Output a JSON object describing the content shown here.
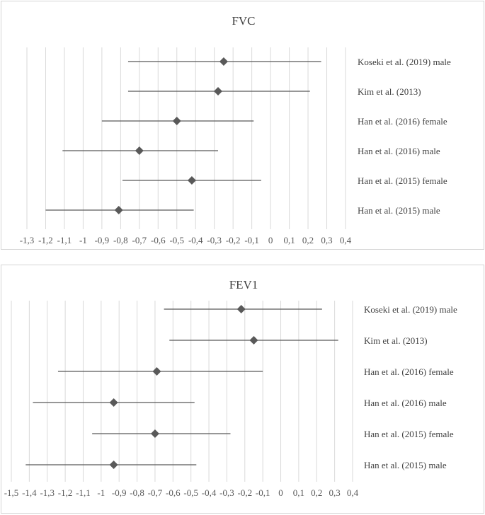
{
  "chart_data": [
    {
      "type": "forest",
      "title": "FVC",
      "xlim": [
        -1.3,
        0.4
      ],
      "xticks": [
        "-1,3",
        "-1,2",
        "-1,1",
        "-1",
        "-0,9",
        "-0,8",
        "-0,7",
        "-0,6",
        "-0,5",
        "-0,4",
        "-0,3",
        "-0,2",
        "-0,1",
        "0",
        "0,1",
        "0,2",
        "0,3",
        "0,4"
      ],
      "xtick_values": [
        -1.3,
        -1.2,
        -1.1,
        -1.0,
        -0.9,
        -0.8,
        -0.7,
        -0.6,
        -0.5,
        -0.4,
        -0.3,
        -0.2,
        -0.1,
        0,
        0.1,
        0.2,
        0.3,
        0.4
      ],
      "studies": [
        {
          "label": "Koseki et al.  (2019) male",
          "estimate": -0.25,
          "lower": -0.76,
          "upper": 0.27
        },
        {
          "label": "Kim et al. (2013)",
          "estimate": -0.28,
          "lower": -0.76,
          "upper": 0.21
        },
        {
          "label": "Han et al. (2016) female",
          "estimate": -0.5,
          "lower": -0.9,
          "upper": -0.09
        },
        {
          "label": "Han et al. (2016) male",
          "estimate": -0.7,
          "lower": -1.11,
          "upper": -0.28
        },
        {
          "label": "Han et al. (2015) female",
          "estimate": -0.42,
          "lower": -0.79,
          "upper": -0.05
        },
        {
          "label": "Han et al. (2015) male",
          "estimate": -0.81,
          "lower": -1.2,
          "upper": -0.41
        }
      ]
    },
    {
      "type": "forest",
      "title": "FEV1",
      "xlim": [
        -1.5,
        0.4
      ],
      "xticks": [
        "-1,5",
        "-1,4",
        "-1,3",
        "-1,2",
        "-1,1",
        "-1",
        "-0,9",
        "-0,8",
        "-0,7",
        "-0,6",
        "-0,5",
        "-0,4",
        "-0,3",
        "-0,2",
        "-0,1",
        "0",
        "0,1",
        "0,2",
        "0,3",
        "0,4"
      ],
      "xtick_values": [
        -1.5,
        -1.4,
        -1.3,
        -1.2,
        -1.1,
        -1.0,
        -0.9,
        -0.8,
        -0.7,
        -0.6,
        -0.5,
        -0.4,
        -0.3,
        -0.2,
        -0.1,
        0,
        0.1,
        0.2,
        0.3,
        0.4
      ],
      "studies": [
        {
          "label": "Koseki et al.  (2019) male",
          "estimate": -0.22,
          "lower": -0.65,
          "upper": 0.23
        },
        {
          "label": "Kim et al. (2013)",
          "estimate": -0.15,
          "lower": -0.62,
          "upper": 0.32
        },
        {
          "label": "Han et al. (2016) female",
          "estimate": -0.69,
          "lower": -1.24,
          "upper": -0.1
        },
        {
          "label": "Han et al. (2016) male",
          "estimate": -0.93,
          "lower": -1.38,
          "upper": -0.48
        },
        {
          "label": "Han et al. (2015) female",
          "estimate": -0.7,
          "lower": -1.05,
          "upper": -0.28
        },
        {
          "label": "Han et al. (2015) male",
          "estimate": -0.93,
          "lower": -1.42,
          "upper": -0.47
        }
      ]
    }
  ]
}
